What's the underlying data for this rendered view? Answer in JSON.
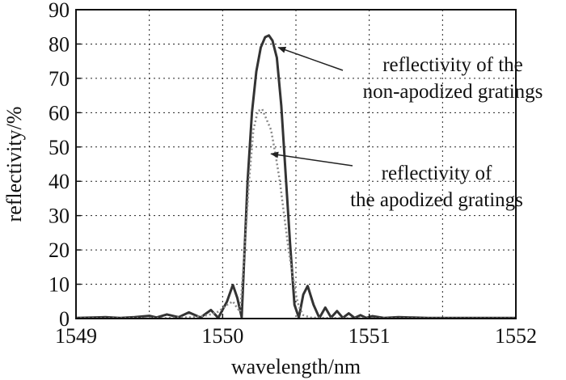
{
  "chart_data": {
    "type": "line",
    "xlabel": "wavelength/nm",
    "ylabel": "reflectivity/%",
    "xlim": [
      1549,
      1552
    ],
    "ylim": [
      0,
      90
    ],
    "xticks": [
      1549,
      1550,
      1551,
      1552
    ],
    "yticks": [
      0,
      10,
      20,
      30,
      40,
      50,
      60,
      70,
      80,
      90
    ],
    "grid": true,
    "series": [
      {
        "style": "solid",
        "color": "#333333",
        "x": [
          1549.0,
          1549.2,
          1549.3,
          1549.4,
          1549.5,
          1549.55,
          1549.62,
          1549.7,
          1549.77,
          1549.85,
          1549.92,
          1549.97,
          1550.03,
          1550.07,
          1550.1,
          1550.13,
          1550.15,
          1550.17,
          1550.2,
          1550.23,
          1550.26,
          1550.29,
          1550.315,
          1550.34,
          1550.37,
          1550.4,
          1550.43,
          1550.46,
          1550.49,
          1550.52,
          1550.55,
          1550.58,
          1550.62,
          1550.66,
          1550.7,
          1550.74,
          1550.78,
          1550.82,
          1550.86,
          1550.9,
          1550.94,
          1550.98,
          1551.02,
          1551.1,
          1551.2,
          1551.4,
          1551.6,
          1552.0
        ],
        "y": [
          0.2,
          0.4,
          0.2,
          0.4,
          0.8,
          0.3,
          1.2,
          0.4,
          1.8,
          0.3,
          2.5,
          0.2,
          5.0,
          9.8,
          6.0,
          0.4,
          20.0,
          40.0,
          60.0,
          72.0,
          79.0,
          82.0,
          82.5,
          81.0,
          76.0,
          62.0,
          42.0,
          22.0,
          4.0,
          0.3,
          7.0,
          9.5,
          4.0,
          0.2,
          3.2,
          0.3,
          2.2,
          0.2,
          1.5,
          0.2,
          1.0,
          0.2,
          0.7,
          0.2,
          0.4,
          0.2,
          0.2,
          0.2
        ]
      },
      {
        "style": "dotted",
        "color": "#888888",
        "x": [
          1549.0,
          1549.3,
          1549.5,
          1549.6,
          1549.7,
          1549.8,
          1549.9,
          1549.97,
          1550.03,
          1550.07,
          1550.1,
          1550.12,
          1550.15,
          1550.18,
          1550.21,
          1550.24,
          1550.27,
          1550.3,
          1550.33,
          1550.36,
          1550.39,
          1550.42,
          1550.45,
          1550.48,
          1550.5,
          1550.52,
          1550.55,
          1550.6,
          1550.7,
          1550.85,
          1551.0,
          1551.2,
          1551.5,
          1552.0
        ],
        "y": [
          0.1,
          0.1,
          0.2,
          0.1,
          0.3,
          0.4,
          1.0,
          2.0,
          4.0,
          5.0,
          3.0,
          2.0,
          20.0,
          40.0,
          55.0,
          60.5,
          61.0,
          58.0,
          55.0,
          48.0,
          40.0,
          30.0,
          20.0,
          12.0,
          7.0,
          3.5,
          1.0,
          0.3,
          0.2,
          0.1,
          0.1,
          0.1,
          0.1,
          0.1
        ]
      }
    ],
    "annotations": [
      {
        "lines": [
          "reflectivity of the",
          "non-apodized gratings"
        ],
        "target": [
          1550.38,
          79
        ]
      },
      {
        "lines": [
          "reflectivity of",
          "the apodized gratings"
        ],
        "target": [
          1550.33,
          48
        ]
      }
    ]
  }
}
